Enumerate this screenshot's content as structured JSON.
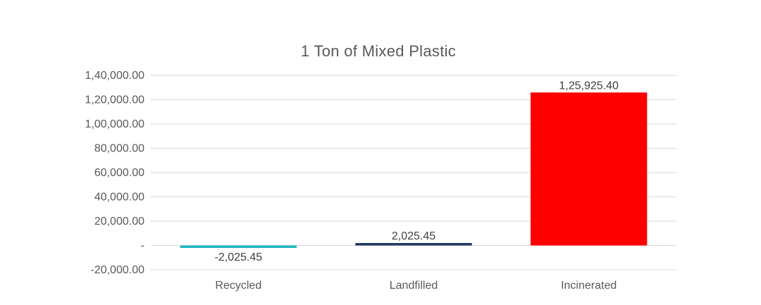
{
  "chart_data": {
    "type": "bar",
    "title": "1 Ton of Mixed Plastic",
    "xlabel": "",
    "ylabel": "",
    "categories": [
      "Recycled",
      "Landfilled",
      "Incinerated"
    ],
    "values": [
      -2025.45,
      2025.45,
      125925.4
    ],
    "value_labels": [
      "-2,025.45",
      "2,025.45",
      "1,25,925.40"
    ],
    "colors": [
      "#1fb5c1",
      "#1f3864",
      "#ff0000"
    ],
    "ylim": [
      -20000,
      140000
    ],
    "yticks": [
      -20000,
      0,
      20000,
      40000,
      60000,
      80000,
      100000,
      120000,
      140000
    ],
    "ytick_labels": [
      "-20,000.00",
      "-",
      "20,000.00",
      "40,000.00",
      "60,000.00",
      "80,000.00",
      "1,00,000.00",
      "1,20,000.00",
      "1,40,000.00"
    ],
    "grid": true,
    "legend": "none"
  }
}
